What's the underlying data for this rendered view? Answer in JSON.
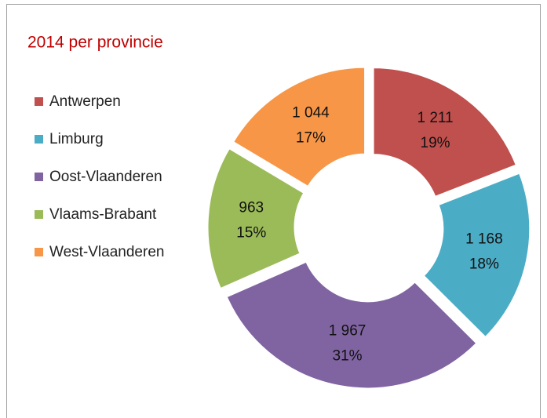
{
  "chart_data": {
    "type": "donut",
    "title": "2014 per provincie",
    "categories": [
      "Antwerpen",
      "Limburg",
      "Oost-Vlaanderen",
      "Vlaams-Brabant",
      "West-Vlaanderen"
    ],
    "values": [
      1211,
      1168,
      1967,
      963,
      1044
    ],
    "value_labels": [
      "1 211",
      "1 168",
      "1 967",
      "963",
      "1 044"
    ],
    "percent_labels": [
      "19%",
      "18%",
      "31%",
      "15%",
      "17%"
    ],
    "colors": [
      "#c0504d",
      "#4bacc6",
      "#8064a2",
      "#9bbb59",
      "#f79646"
    ],
    "legend": "left"
  }
}
